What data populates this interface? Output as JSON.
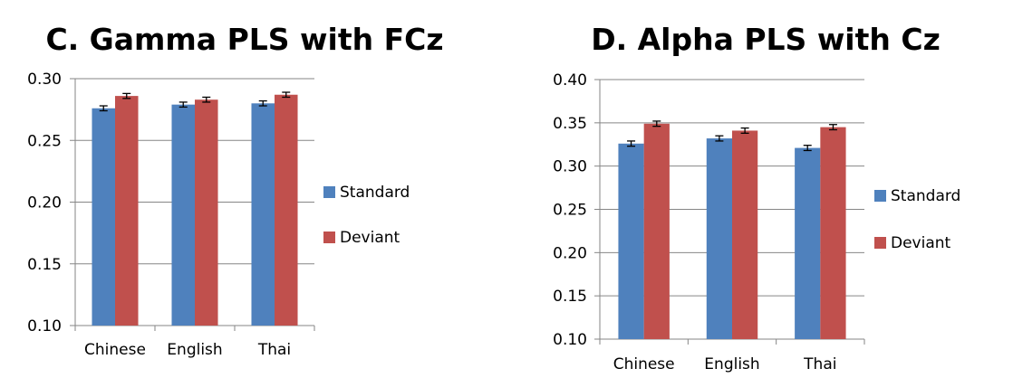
{
  "chart_data": [
    {
      "type": "bar",
      "title": "C. Gamma PLS with FCz",
      "categories": [
        "Chinese",
        "English",
        "Thai"
      ],
      "ylim": [
        0.1,
        0.3
      ],
      "yticks": [
        "0.30",
        "0.25",
        "0.20",
        "0.15",
        "0.10"
      ],
      "series": [
        {
          "name": "Standard",
          "color": "#4f81bd",
          "values": [
            0.276,
            0.279,
            0.28
          ],
          "errors": [
            0.002,
            0.002,
            0.002
          ]
        },
        {
          "name": "Deviant",
          "color": "#c0504d",
          "values": [
            0.286,
            0.283,
            0.287
          ],
          "errors": [
            0.002,
            0.002,
            0.002
          ]
        }
      ],
      "legend_position": "right",
      "grid": true
    },
    {
      "type": "bar",
      "title": "D. Alpha PLS with Cz",
      "categories": [
        "Chinese",
        "English",
        "Thai"
      ],
      "ylim": [
        0.1,
        0.4
      ],
      "yticks": [
        "0.40",
        "0.35",
        "0.30",
        "0.25",
        "0.20",
        "0.15",
        "0.10"
      ],
      "series": [
        {
          "name": "Standard",
          "color": "#4f81bd",
          "values": [
            0.326,
            0.332,
            0.321
          ],
          "errors": [
            0.003,
            0.003,
            0.003
          ]
        },
        {
          "name": "Deviant",
          "color": "#c0504d",
          "values": [
            0.349,
            0.341,
            0.345
          ],
          "errors": [
            0.003,
            0.003,
            0.003
          ]
        }
      ],
      "legend_position": "right",
      "grid": true
    }
  ]
}
